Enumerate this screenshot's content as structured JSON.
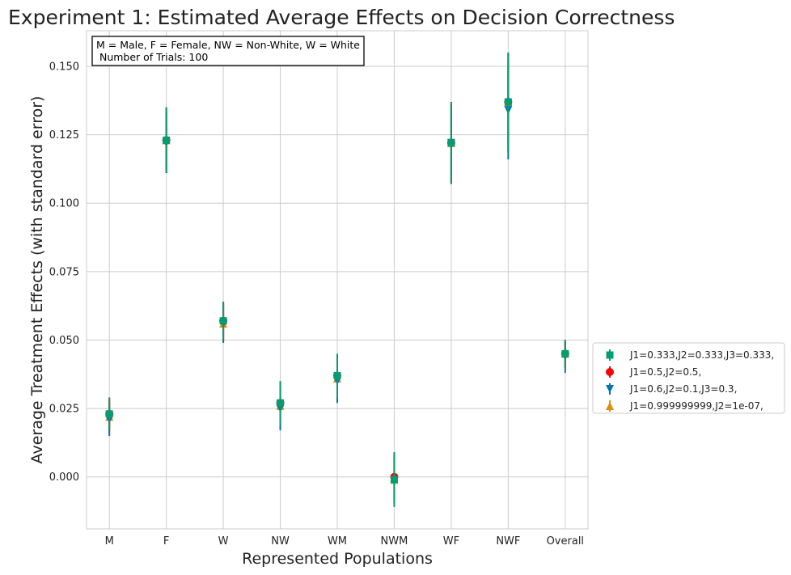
{
  "chart_data": {
    "type": "scatter",
    "title": "Experiment 1: Estimated Average Effects on Decision Correctness",
    "xlabel": "Represented Populations",
    "ylabel": "Average Treatment Effects (with standard error)",
    "categories": [
      "M",
      "F",
      "W",
      "NW",
      "WM",
      "NWM",
      "WF",
      "NWF",
      "Overall"
    ],
    "ylim": [
      -0.019,
      0.163
    ],
    "yticks": [
      "0.000",
      "0.025",
      "0.050",
      "0.075",
      "0.100",
      "0.125",
      "0.150"
    ],
    "grid": true,
    "legend_position": "right",
    "annotation": {
      "line1": "M = Male, F = Female, NW = Non-White, W = White",
      "line2": " Number of Trials: 100"
    },
    "series": [
      {
        "name": "J1=0.333,J2=0.333,J3=0.333,",
        "marker": "square",
        "color": "#029e73",
        "values": [
          0.023,
          0.123,
          0.057,
          0.027,
          0.037,
          -0.001,
          0.122,
          0.137,
          0.045
        ],
        "errors": [
          0.006,
          0.012,
          0.007,
          0.008,
          0.008,
          0.01,
          0.015,
          0.018,
          0.005
        ]
      },
      {
        "name": "J1=0.5,J2=0.5,",
        "marker": "circle",
        "color": "#ff0000",
        "values": [
          0.023,
          0.123,
          0.057,
          0.027,
          0.037,
          0.0,
          0.122,
          0.137,
          0.045
        ],
        "errors": [
          0.006,
          0.012,
          0.007,
          0.008,
          0.008,
          0.009,
          0.015,
          0.018,
          0.005
        ]
      },
      {
        "name": "J1=0.6,J2=0.1,J3=0.3,",
        "marker": "triangle-down",
        "color": "#0173b2",
        "values": [
          0.021,
          0.122,
          0.056,
          0.025,
          0.035,
          -0.001,
          0.122,
          0.134,
          0.044
        ],
        "errors": [
          0.006,
          0.011,
          0.007,
          0.008,
          0.008,
          0.009,
          0.014,
          0.018,
          0.006
        ]
      },
      {
        "name": "J1=0.999999999,J2=1e-07,",
        "marker": "triangle-up",
        "color": "#de8f05",
        "values": [
          0.022,
          0.123,
          0.056,
          0.026,
          0.036,
          -0.001,
          0.122,
          0.137,
          0.045
        ],
        "errors": [
          0.006,
          0.012,
          0.007,
          0.008,
          0.008,
          0.009,
          0.015,
          0.018,
          0.005
        ]
      }
    ]
  }
}
